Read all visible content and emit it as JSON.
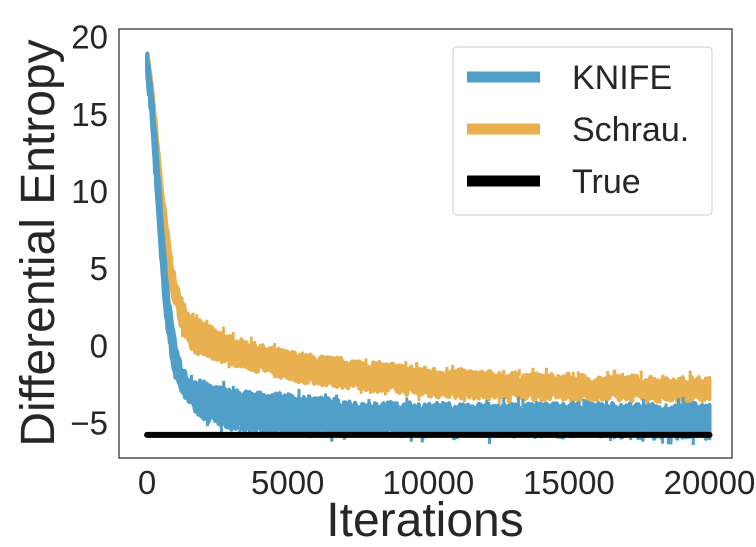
{
  "chart_data": {
    "type": "line",
    "xlabel": "Iterations",
    "ylabel": "Differential Entropy",
    "xlim": [
      -1000,
      20800
    ],
    "ylim": [
      -7.3,
      20.5
    ],
    "x_ticks": [
      0,
      5000,
      10000,
      15000,
      20000
    ],
    "x_tick_labels": [
      "0",
      "5000",
      "10000",
      "15000",
      "20000"
    ],
    "y_ticks": [
      20,
      15,
      10,
      5,
      0,
      -5
    ],
    "y_tick_labels": [
      "20",
      "15",
      "10",
      "5",
      "0",
      "−5"
    ],
    "grid": false,
    "legend_position": "top-right",
    "series": [
      {
        "name": "Schrau.",
        "color": "#e8b04f",
        "band_x": [
          0,
          150,
          300,
          500,
          700,
          900,
          1000,
          1200,
          1500,
          2000,
          3000,
          4000,
          5000,
          6000,
          7000,
          8000,
          9000,
          10000,
          11000,
          12000,
          13000,
          14000,
          15000,
          16000,
          17000,
          18000,
          19000,
          20000
        ],
        "band_low": [
          18.3,
          16.0,
          12.5,
          8.0,
          5.0,
          3.5,
          2.8,
          1.5,
          0.0,
          -0.5,
          -1.0,
          -1.5,
          -2.0,
          -2.3,
          -2.5,
          -2.7,
          -2.9,
          -3.1,
          -3.2,
          -3.2,
          -3.3,
          -3.3,
          -3.3,
          -3.4,
          -3.4,
          -3.4,
          -3.4,
          -3.5
        ],
        "band_high": [
          19.0,
          17.0,
          14.5,
          10.5,
          7.5,
          5.0,
          4.0,
          2.8,
          1.8,
          1.2,
          0.3,
          -0.2,
          -0.6,
          -0.9,
          -1.1,
          -1.3,
          -1.5,
          -1.7,
          -1.8,
          -1.9,
          -2.0,
          -2.1,
          -2.1,
          -2.2,
          -2.2,
          -2.2,
          -2.3,
          -2.3
        ]
      },
      {
        "name": "KNIFE",
        "color": "#4f9fc8",
        "band_x": [
          0,
          150,
          300,
          500,
          700,
          900,
          1000,
          1200,
          1500,
          2000,
          2500,
          3000,
          4000,
          5000,
          6000,
          7000,
          8000,
          10000,
          12000,
          14000,
          16000,
          18000,
          20000
        ],
        "band_low": [
          17.5,
          15.0,
          11.0,
          5.5,
          1.5,
          -1.0,
          -1.8,
          -2.8,
          -3.6,
          -4.6,
          -4.9,
          -5.2,
          -5.4,
          -5.5,
          -5.6,
          -5.6,
          -5.6,
          -5.7,
          -5.7,
          -5.7,
          -5.7,
          -5.8,
          -5.8
        ],
        "band_high": [
          18.9,
          16.5,
          13.5,
          8.5,
          4.0,
          1.0,
          0.0,
          -1.5,
          -2.3,
          -2.6,
          -2.9,
          -3.1,
          -3.3,
          -3.4,
          -3.6,
          -3.8,
          -3.9,
          -4.0,
          -4.0,
          -4.0,
          -4.0,
          -4.0,
          -4.0
        ]
      },
      {
        "name": "True",
        "color": "#000000",
        "x": [
          0,
          20000
        ],
        "y": [
          -5.8,
          -5.8
        ]
      }
    ]
  },
  "legend": {
    "items": [
      {
        "label": "KNIFE",
        "color": "#4f9fc8"
      },
      {
        "label": "Schrau.",
        "color": "#e8b04f"
      },
      {
        "label": "True",
        "color": "#000000"
      }
    ]
  }
}
